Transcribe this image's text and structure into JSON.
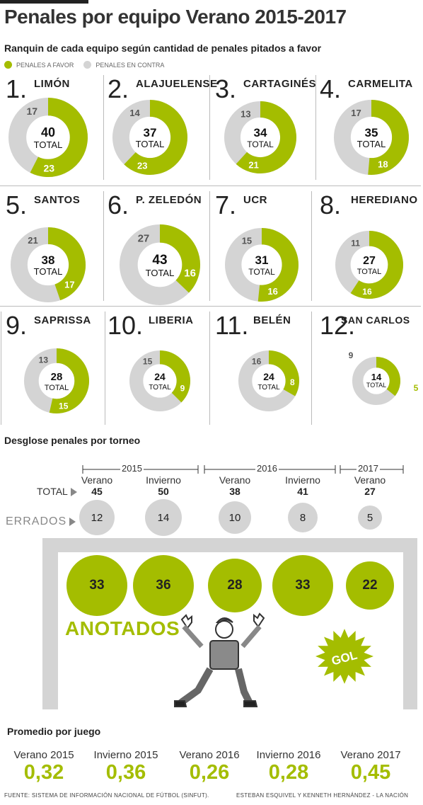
{
  "title": "Penales por equipo Verano 2015-2017",
  "subtitle": "Ranquin de cada equipo según cantidad de penales pitados a favor",
  "legend": {
    "favor": "PENALES A FAVOR",
    "contra": "PENALES EN CONTRA"
  },
  "colors": {
    "favor": "#a4bd00",
    "contra": "#d4d4d4"
  },
  "total_word": "TOTAL",
  "teams": [
    {
      "rank": "1.",
      "name": "LIMÓN",
      "total": "40",
      "favor": "23",
      "contra": "17"
    },
    {
      "rank": "2.",
      "name": "ALAJUELENSE",
      "total": "37",
      "favor": "23",
      "contra": "14"
    },
    {
      "rank": "3.",
      "name": "CARTAGINÉS",
      "total": "34",
      "favor": "21",
      "contra": "13"
    },
    {
      "rank": "4.",
      "name": "CARMELITA",
      "total": "35",
      "favor": "18",
      "contra": "17"
    },
    {
      "rank": "5.",
      "name": "SANTOS",
      "total": "38",
      "favor": "17",
      "contra": "21"
    },
    {
      "rank": "6.",
      "name": "P. ZELEDÓN",
      "total": "43",
      "favor": "16",
      "contra": "27"
    },
    {
      "rank": "7.",
      "name": "UCR",
      "total": "31",
      "favor": "16",
      "contra": "15"
    },
    {
      "rank": "8.",
      "name": "HEREDIANO",
      "total": "27",
      "favor": "16",
      "contra": "11"
    },
    {
      "rank": "9.",
      "name": "SAPRISSA",
      "total": "28",
      "favor": "15",
      "contra": "13"
    },
    {
      "rank": "10.",
      "name": "LIBERIA",
      "total": "24",
      "favor": "9",
      "contra": "15"
    },
    {
      "rank": "11.",
      "name": "BELÉN",
      "total": "24",
      "favor": "8",
      "contra": "16"
    },
    {
      "rank": "12.",
      "name": "SAN CARLOS",
      "total": "14",
      "favor": "5",
      "contra": "9"
    }
  ],
  "desglose": {
    "title": "Desglose penales por torneo",
    "years": [
      "2015",
      "2016",
      "2017"
    ],
    "total_label": "TOTAL",
    "errados_label": "ERRADOS",
    "anotados_label": "ANOTADOS",
    "gol_label": "GOL",
    "tournaments": [
      {
        "season": "Verano",
        "total": "45",
        "errados": "12",
        "anotados": "33"
      },
      {
        "season": "Invierno",
        "total": "50",
        "errados": "14",
        "anotados": "36"
      },
      {
        "season": "Verano",
        "total": "38",
        "errados": "10",
        "anotados": "28"
      },
      {
        "season": "Invierno",
        "total": "41",
        "errados": "8",
        "anotados": "33"
      },
      {
        "season": "Verano",
        "total": "27",
        "errados": "5",
        "anotados": "22"
      }
    ]
  },
  "promedio": {
    "title": "Promedio por juego",
    "items": [
      {
        "label": "Verano 2015",
        "value": "0,32"
      },
      {
        "label": "Invierno 2015",
        "value": "0,36"
      },
      {
        "label": "Verano 2016",
        "value": "0,26"
      },
      {
        "label": "Invierno 2016",
        "value": "0,28"
      },
      {
        "label": "Verano 2017",
        "value": "0,45"
      }
    ]
  },
  "footer": {
    "source": "FUENTE: SISTEMA DE INFORMACIÓN NACIONAL DE FÚTBOL (SINFUT).",
    "credit": "ESTEBAN ESQUIVEL Y KENNETH HERNÁNDEZ - LA NACIÓN"
  }
}
